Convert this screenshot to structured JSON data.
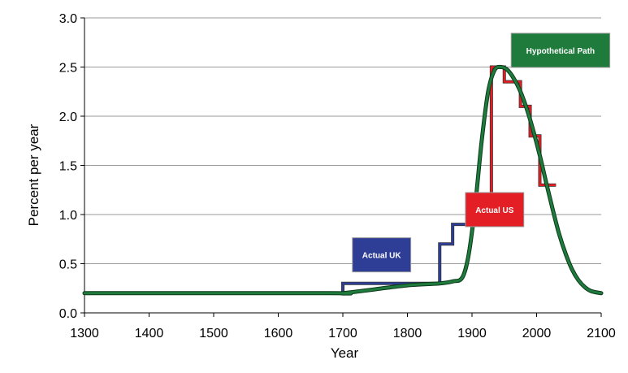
{
  "chart_data": {
    "type": "line",
    "title": "",
    "xlabel": "Year",
    "ylabel": "Percent per year",
    "xlim": [
      1300,
      2100
    ],
    "ylim": [
      0,
      3.0
    ],
    "x_ticks": [
      "1300",
      "1400",
      "1500",
      "1600",
      "1700",
      "1800",
      "1900",
      "2000",
      "2100"
    ],
    "y_ticks": [
      "0.0",
      "0.5",
      "1.0",
      "1.5",
      "2.0",
      "2.5",
      "3.0"
    ],
    "grid": "horizontal",
    "series": [
      {
        "name": "Actual UK",
        "color": "#2e3d96",
        "style": "step",
        "label_box": {
          "x": 1760,
          "y": 0.59
        },
        "points": [
          [
            1300,
            0.2
          ],
          [
            1700,
            0.2
          ],
          [
            1700,
            0.3
          ],
          [
            1850,
            0.3
          ],
          [
            1850,
            0.7
          ],
          [
            1870,
            0.7
          ],
          [
            1870,
            0.9
          ],
          [
            1900,
            0.9
          ],
          [
            1900,
            1.05
          ],
          [
            1910,
            1.05
          ]
        ]
      },
      {
        "name": "Actual US",
        "color": "#e31e24",
        "style": "step",
        "label_box": {
          "x": 1935,
          "y": 1.05
        },
        "points": [
          [
            1910,
            1.05
          ],
          [
            1930,
            1.05
          ],
          [
            1930,
            2.5
          ],
          [
            1950,
            2.5
          ],
          [
            1950,
            2.35
          ],
          [
            1975,
            2.35
          ],
          [
            1975,
            2.1
          ],
          [
            1990,
            2.1
          ],
          [
            1990,
            1.8
          ],
          [
            2005,
            1.8
          ],
          [
            2005,
            1.3
          ],
          [
            2030,
            1.3
          ]
        ]
      },
      {
        "name": "Hypothetical Path",
        "color": "#1e7b3c",
        "style": "smooth",
        "label_box": {
          "x": 2037,
          "y": 2.67
        },
        "points": [
          [
            1300,
            0.2
          ],
          [
            1680,
            0.2
          ],
          [
            1700,
            0.2
          ],
          [
            1750,
            0.24
          ],
          [
            1800,
            0.28
          ],
          [
            1850,
            0.3
          ],
          [
            1870,
            0.32
          ],
          [
            1885,
            0.36
          ],
          [
            1895,
            0.6
          ],
          [
            1905,
            1.1
          ],
          [
            1915,
            1.75
          ],
          [
            1925,
            2.25
          ],
          [
            1935,
            2.47
          ],
          [
            1945,
            2.5
          ],
          [
            1955,
            2.47
          ],
          [
            1965,
            2.38
          ],
          [
            1975,
            2.25
          ],
          [
            1985,
            2.07
          ],
          [
            1995,
            1.85
          ],
          [
            2005,
            1.6
          ],
          [
            2015,
            1.32
          ],
          [
            2025,
            1.05
          ],
          [
            2035,
            0.8
          ],
          [
            2045,
            0.6
          ],
          [
            2055,
            0.44
          ],
          [
            2065,
            0.33
          ],
          [
            2075,
            0.26
          ],
          [
            2085,
            0.22
          ],
          [
            2100,
            0.2
          ]
        ]
      }
    ]
  }
}
